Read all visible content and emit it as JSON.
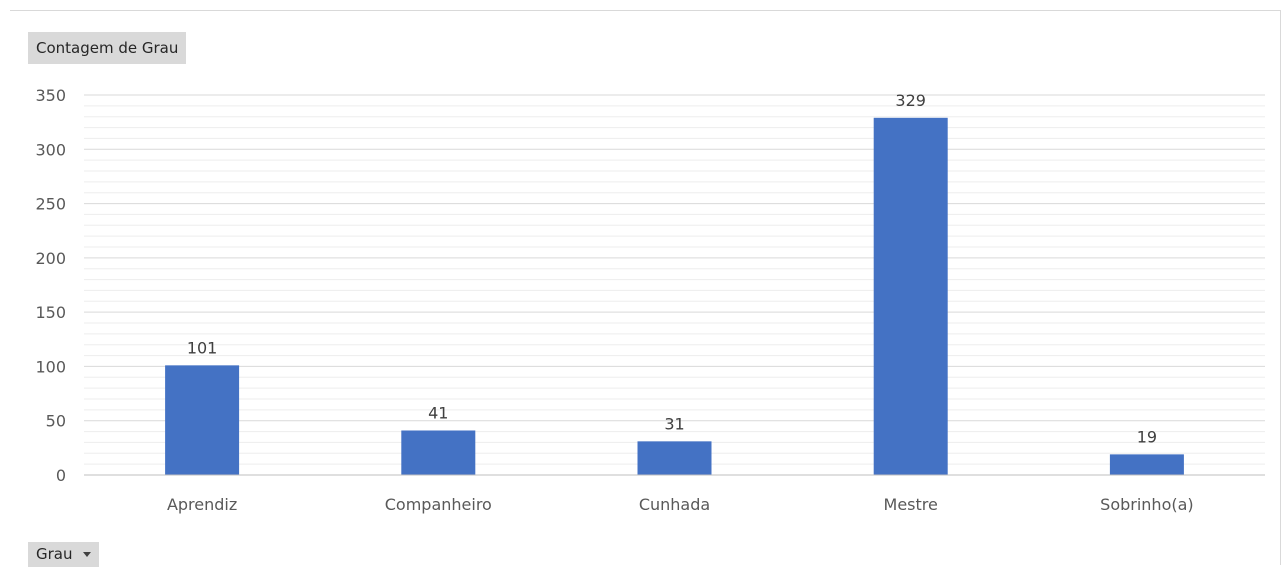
{
  "pivot": {
    "values_field_label": "Contagem de Grau",
    "axis_field_label": "Grau"
  },
  "chart_data": {
    "type": "bar",
    "categories": [
      "Aprendiz",
      "Companheiro",
      "Cunhada",
      "Mestre",
      "Sobrinho(a)"
    ],
    "values": [
      101,
      41,
      31,
      329,
      19
    ],
    "ylim": [
      0,
      350
    ],
    "yticks": [
      0,
      50,
      100,
      150,
      200,
      250,
      300,
      350
    ],
    "data_labels": true,
    "grid": true,
    "minor_grid": true,
    "legend": "none",
    "colors": {
      "bar": "#4472c4",
      "major_grid": "#d9d9d9",
      "minor_grid": "#ededed",
      "axis": "#bfbfbf"
    }
  }
}
